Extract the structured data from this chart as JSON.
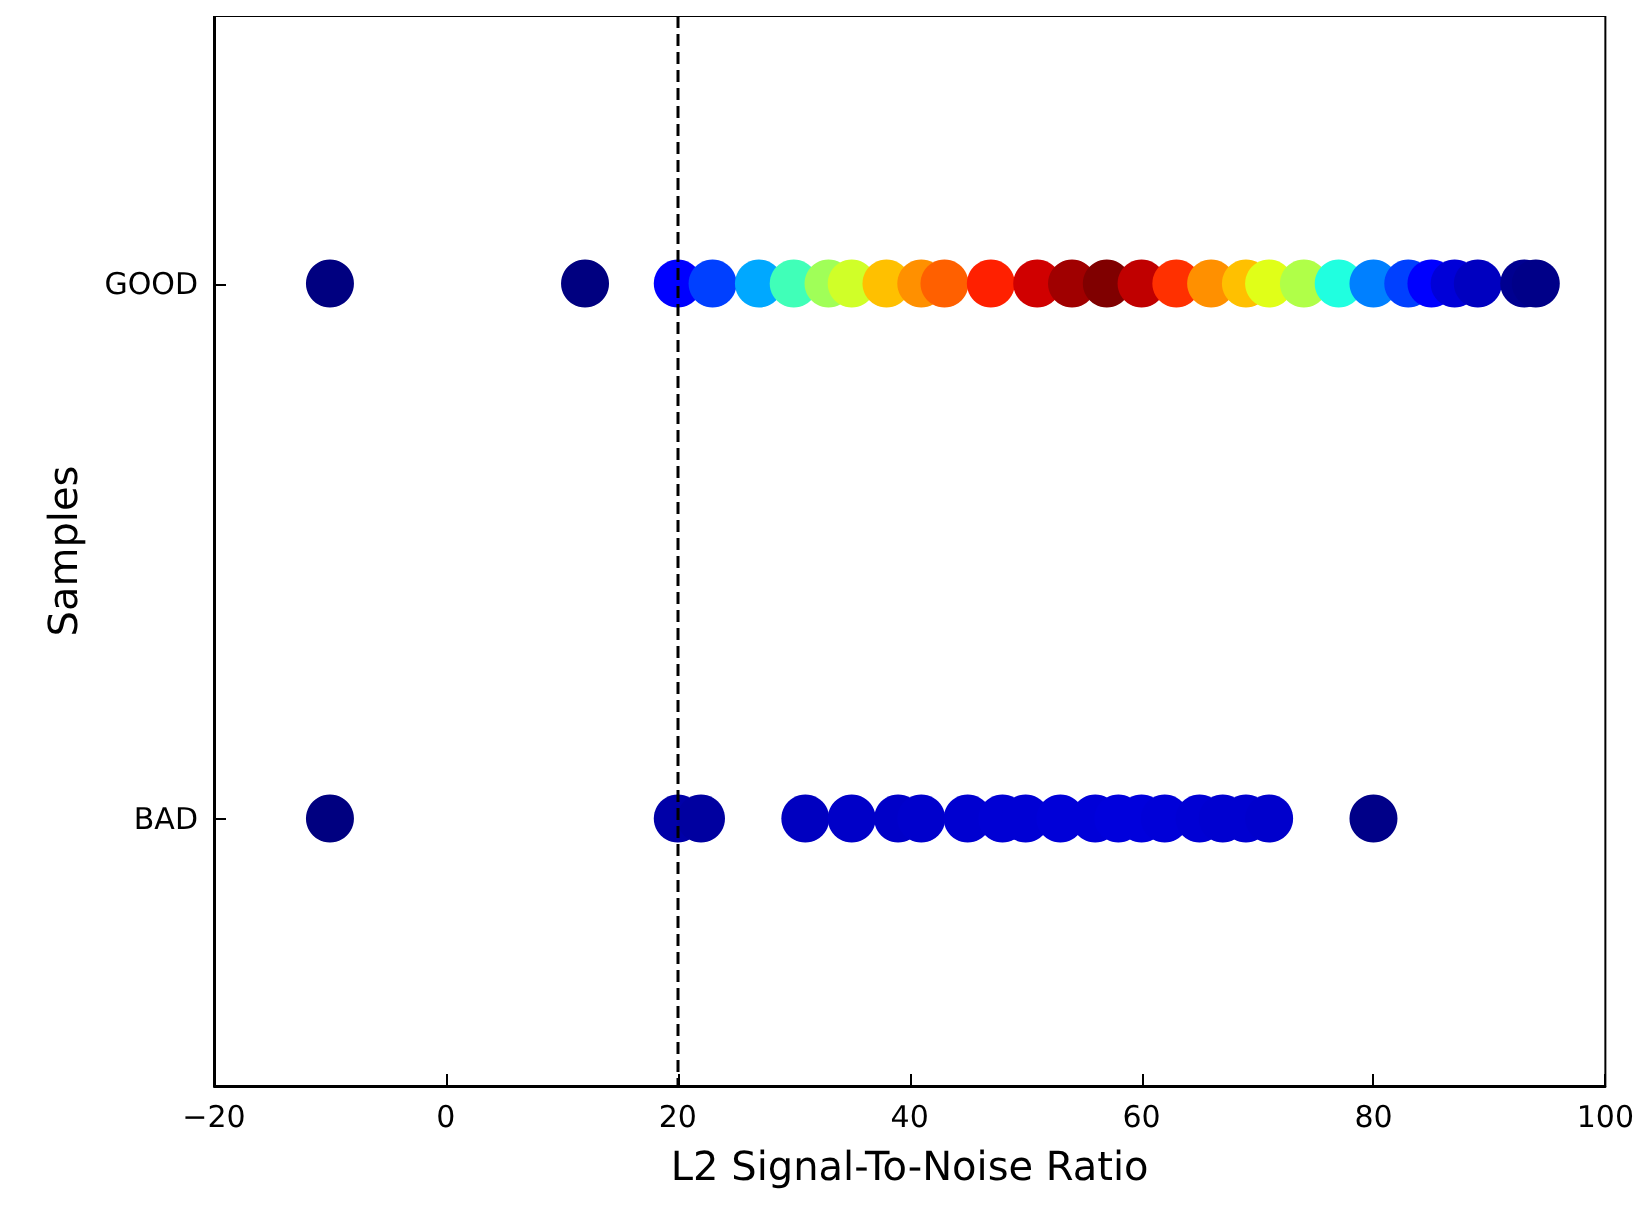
{
  "chart_data": {
    "type": "scatter",
    "orientation": "horizontal",
    "xlabel": "L2 Signal-To-Noise Ratio",
    "ylabel": "Samples",
    "categories": [
      "GOOD",
      "BAD"
    ],
    "xlim": [
      -20,
      100
    ],
    "xticks": [
      -20,
      0,
      20,
      40,
      60,
      80,
      100
    ],
    "grid": false,
    "marker": "circle",
    "ref_lines": [
      {
        "axis": "x",
        "value": 20,
        "line_style": "dashed",
        "color": "#000000"
      }
    ],
    "series": [
      {
        "x": [
          "GOOD",
          "GOOD",
          "GOOD",
          "GOOD",
          "GOOD",
          "GOOD",
          "GOOD",
          "GOOD",
          "GOOD",
          "GOOD",
          "GOOD",
          "GOOD",
          "GOOD",
          "GOOD",
          "GOOD",
          "GOOD",
          "GOOD",
          "GOOD",
          "GOOD",
          "GOOD",
          "GOOD",
          "GOOD",
          "GOOD",
          "GOOD",
          "GOOD",
          "GOOD",
          "GOOD",
          "GOOD",
          "GOOD"
        ],
        "values": [
          -10,
          12,
          20,
          23,
          27,
          30,
          33,
          35,
          38,
          41,
          43,
          47,
          51,
          54,
          57,
          60,
          63,
          66,
          69,
          71,
          74,
          77,
          80,
          83,
          85,
          87,
          89,
          93,
          94
        ],
        "colors": [
          "#000080",
          "#000080",
          "#0000ff",
          "#0040ff",
          "#00a8ff",
          "#40ffb8",
          "#a0ff58",
          "#d0ff28",
          "#ffc000",
          "#ff9000",
          "#ff6000",
          "#ff2000",
          "#d00000",
          "#a00000",
          "#800000",
          "#c00000",
          "#ff3000",
          "#ff9000",
          "#ffc000",
          "#e0ff18",
          "#b0ff48",
          "#20ffe0",
          "#0080ff",
          "#0040ff",
          "#0000ff",
          "#0000d8",
          "#0000c0",
          "#000090",
          "#000088"
        ]
      },
      {
        "x": [
          "BAD",
          "BAD",
          "BAD",
          "BAD",
          "BAD",
          "BAD",
          "BAD",
          "BAD",
          "BAD",
          "BAD",
          "BAD",
          "BAD",
          "BAD",
          "BAD",
          "BAD",
          "BAD",
          "BAD",
          "BAD",
          "BAD",
          "BAD"
        ],
        "values": [
          -10,
          20,
          22,
          31,
          35,
          39,
          41,
          45,
          48,
          50,
          53,
          56,
          58,
          60,
          62,
          65,
          67,
          69,
          71,
          80
        ],
        "colors": [
          "#000080",
          "#0000a8",
          "#0000a0",
          "#0000c0",
          "#0000c8",
          "#0000c8",
          "#0000cc",
          "#0000d0",
          "#0000d4",
          "#0000d4",
          "#0000d8",
          "#0000d8",
          "#0000dc",
          "#0000dc",
          "#0000d8",
          "#0000d4",
          "#0000d0",
          "#0000d0",
          "#0000cc",
          "#000088"
        ]
      }
    ]
  }
}
